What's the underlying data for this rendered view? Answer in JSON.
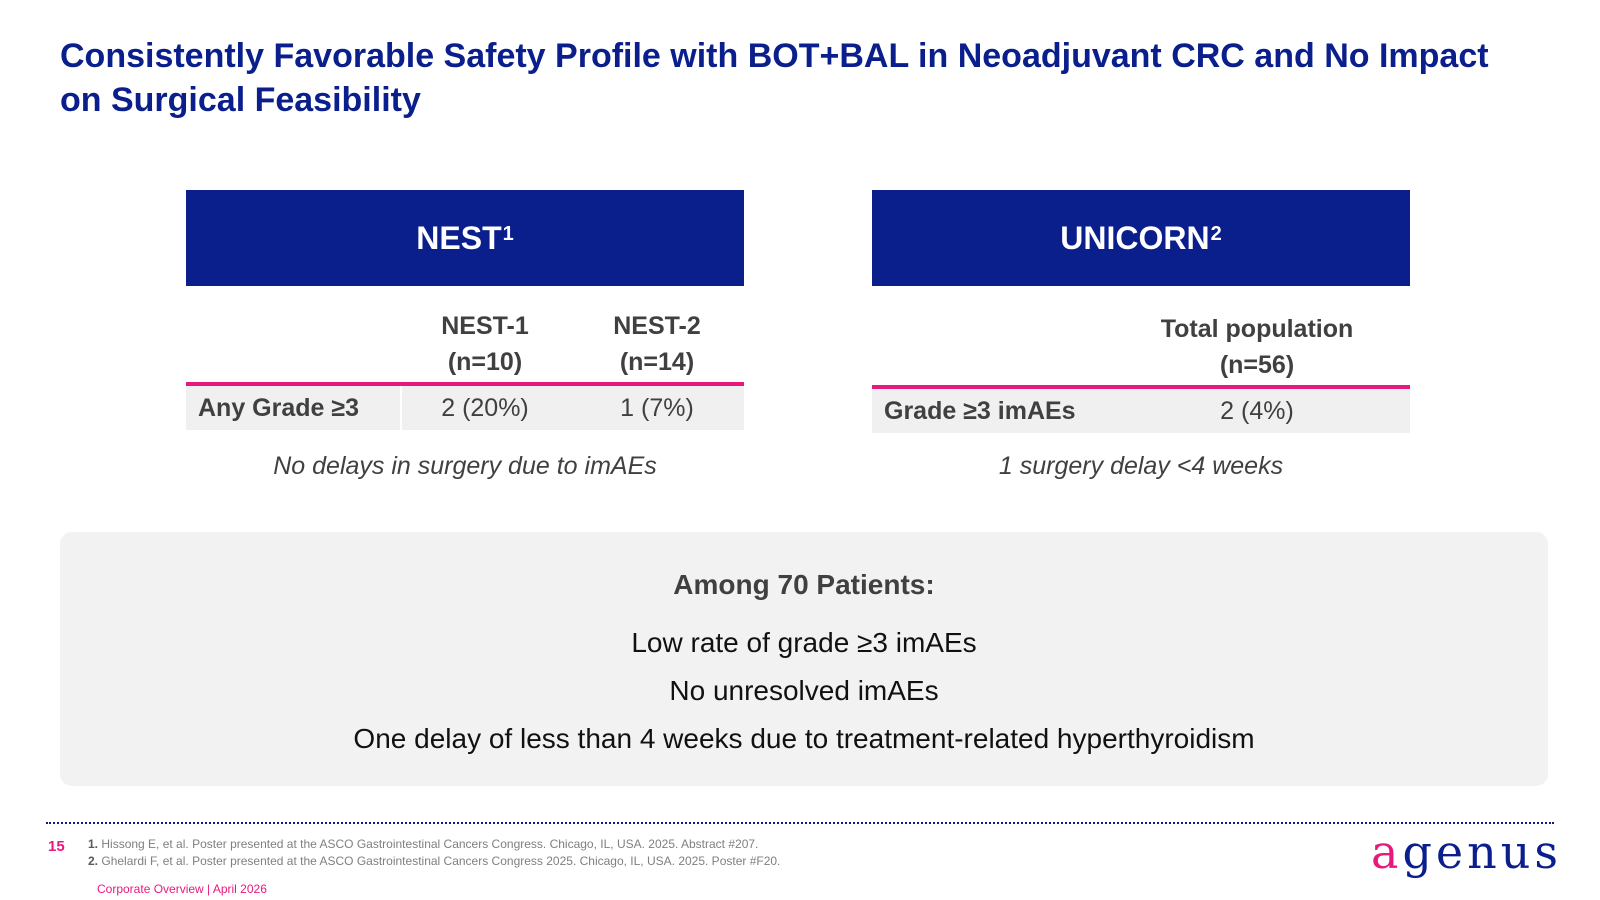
{
  "slide": {
    "title_line1": "Consistently Favorable Safety Profile with BOT+BAL in Neoadjuvant CRC and No Impact",
    "title_line2": "on Surgical Feasibility"
  },
  "nest": {
    "header": "NEST",
    "header_sup": "1",
    "col1_line1": "NEST-1",
    "col1_line2": "(n=10)",
    "col2_line1": "NEST-2",
    "col2_line2": "(n=14)",
    "row_label": "Any Grade ≥3",
    "col1_value": "2 (20%)",
    "col2_value": "1 (7%)",
    "note": "No delays in surgery due to imAEs"
  },
  "unicorn": {
    "header": "UNICORN",
    "header_sup": "2",
    "col_line1": "Total population",
    "col_line2": "(n=56)",
    "row_label": "Grade ≥3 imAEs",
    "value": "2 (4%)",
    "note": "1 surgery delay <4 weeks"
  },
  "summary": {
    "heading": "Among 70 Patients:",
    "lines": [
      "Low rate of grade ≥3 imAEs",
      "No unresolved imAEs",
      "One delay of less than 4 weeks due to treatment-related hyperthyroidism"
    ]
  },
  "footer": {
    "page_number": "15",
    "ref1_num": "1.",
    "ref1_text": "Hissong E, et al. Poster presented at the ASCO Gastrointestinal Cancers Congress. Chicago, IL, USA. 2025. Abstract #207.",
    "ref2_num": "2.",
    "ref2_text": "Ghelardi F, et al. Poster presented at the ASCO Gastrointestinal Cancers Congress 2025. Chicago, IL, USA. 2025. Poster #F20.",
    "label": "Corporate Overview | April 2026"
  },
  "logo": {
    "first_letter": "a",
    "rest": "genus",
    "colors": {
      "brand_navy": "#0a1e8c",
      "brand_pink": "#e8197d"
    }
  }
}
